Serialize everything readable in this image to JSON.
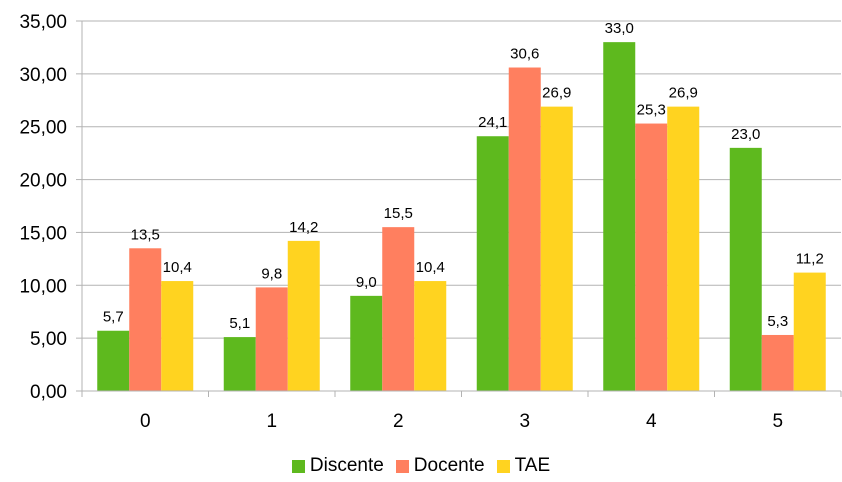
{
  "chart_data": {
    "type": "bar",
    "categories": [
      "0",
      "1",
      "2",
      "3",
      "4",
      "5"
    ],
    "series": [
      {
        "name": "Discente",
        "color": "#5eb91e",
        "values": [
          5.7,
          5.1,
          9.0,
          24.1,
          33.0,
          23.0
        ],
        "labels": [
          "5,7",
          "5,1",
          "9,0",
          "24,1",
          "33,0",
          "23,0"
        ]
      },
      {
        "name": "Docente",
        "color": "#ff7f5f",
        "values": [
          13.5,
          9.8,
          15.5,
          30.6,
          25.3,
          5.3
        ],
        "labels": [
          "13,5",
          "9,8",
          "15,5",
          "30,6",
          "25,3",
          "5,3"
        ]
      },
      {
        "name": "TAE",
        "color": "#ffd320",
        "values": [
          10.4,
          14.2,
          10.4,
          26.9,
          26.9,
          11.2
        ],
        "labels": [
          "10,4",
          "14,2",
          "10,4",
          "26,9",
          "26,9",
          "11,2"
        ]
      }
    ],
    "ylim": [
      0,
      35
    ],
    "yticks": [
      "0,00",
      "5,00",
      "10,00",
      "15,00",
      "20,00",
      "25,00",
      "30,00",
      "35,00"
    ],
    "grid": true,
    "legend": "bottom"
  }
}
